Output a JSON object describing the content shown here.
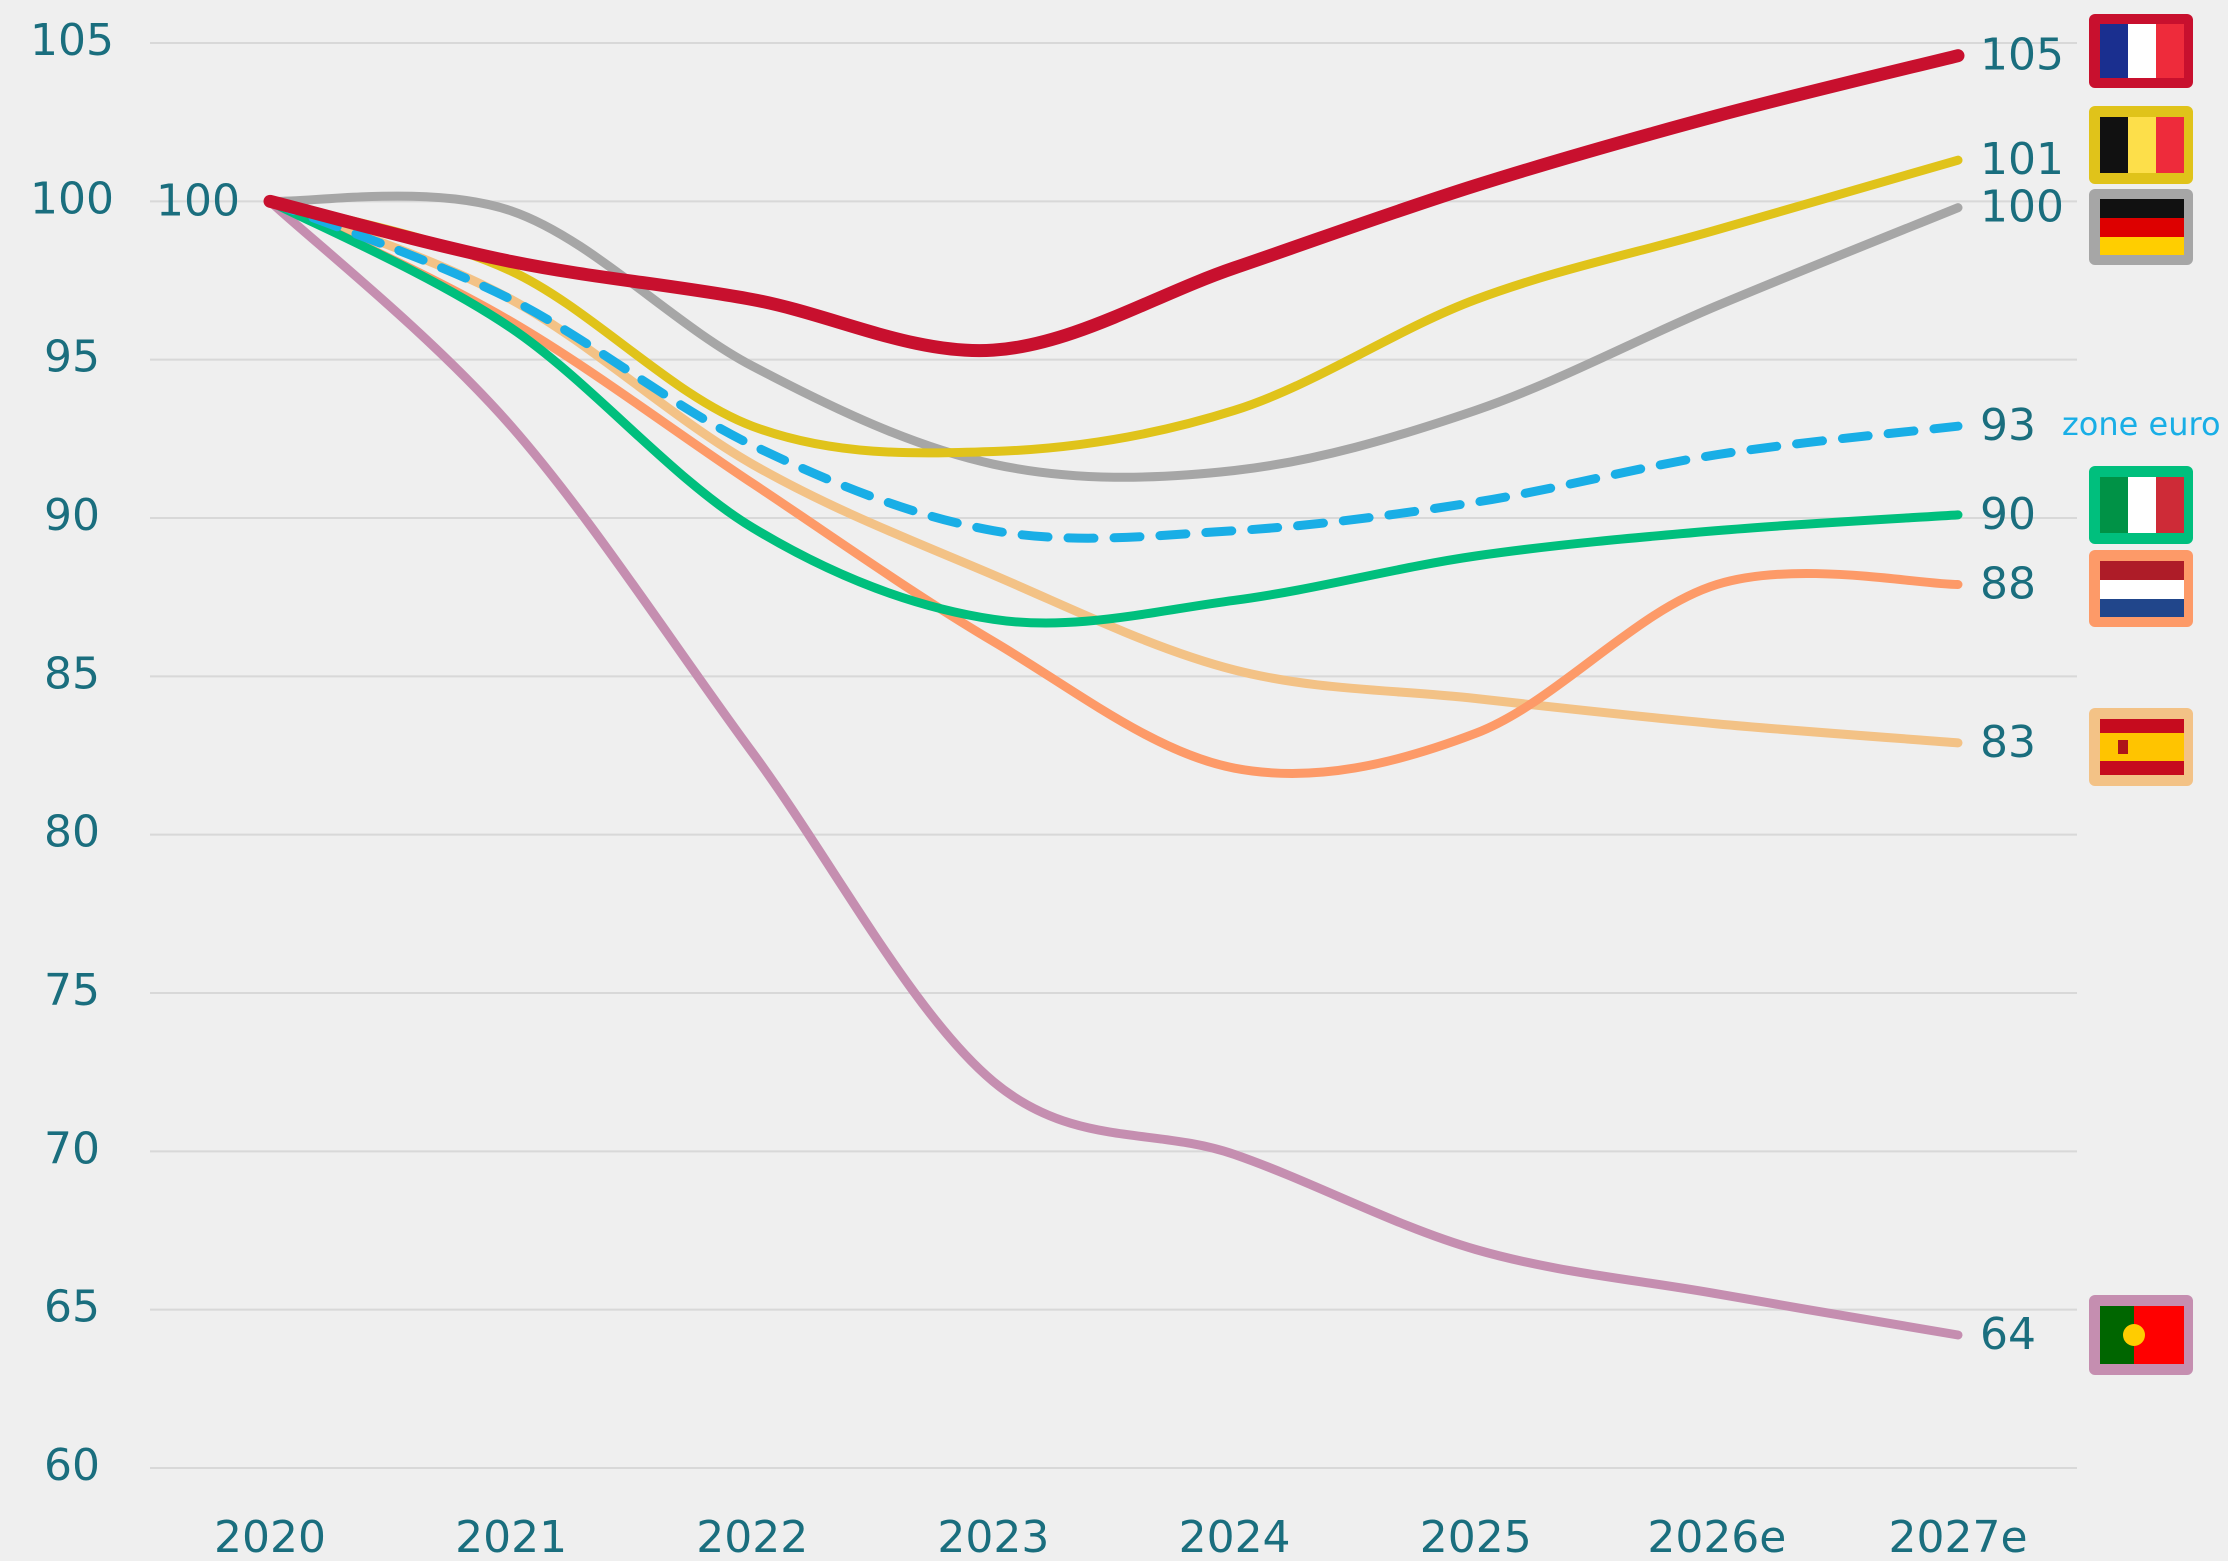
{
  "chart_data": {
    "type": "line",
    "categories": [
      "2020",
      "2021",
      "2022",
      "2023",
      "2024",
      "2025",
      "2026e",
      "2027e"
    ],
    "series": [
      {
        "color": "#c8102e",
        "values": [
          100,
          98.1,
          96.9,
          95.3,
          97.9,
          100.5,
          102.7,
          104.6
        ],
        "value_labels": [
          "100",
          null,
          null,
          null,
          null,
          null,
          null,
          "105"
        ]
      },
      {
        "color": "#e0c31a",
        "values": [
          100,
          97.8,
          92.9,
          92.1,
          93.4,
          96.9,
          99.1,
          101.3
        ],
        "value_labels": [
          null,
          null,
          null,
          null,
          null,
          null,
          null,
          "101"
        ]
      },
      {
        "color": "#a6a6a6",
        "values": [
          100,
          99.7,
          94.8,
          91.7,
          91.5,
          93.4,
          96.7,
          99.8
        ],
        "value_labels": [
          null,
          null,
          null,
          null,
          null,
          null,
          null,
          "100"
        ]
      },
      {
        "name": "zone euro",
        "color": "#19aee6",
        "dashed": true,
        "values": [
          100,
          96.9,
          92.3,
          89.6,
          89.6,
          90.5,
          92.0,
          92.9
        ],
        "value_labels": [
          null,
          null,
          null,
          null,
          null,
          null,
          null,
          "93"
        ]
      },
      {
        "color": "#00bf7d",
        "values": [
          100,
          96.0,
          89.7,
          86.8,
          87.4,
          88.8,
          89.6,
          90.1
        ],
        "value_labels": [
          null,
          null,
          null,
          null,
          null,
          null,
          null,
          "90"
        ]
      },
      {
        "color": "#fd9a68",
        "values": [
          100,
          96.2,
          91.1,
          86.1,
          82.1,
          83.2,
          87.9,
          87.9
        ],
        "value_labels": [
          null,
          null,
          null,
          null,
          null,
          null,
          null,
          "88"
        ]
      },
      {
        "color": "#f3c286",
        "values": [
          100,
          96.9,
          91.7,
          88.2,
          85.2,
          84.3,
          83.5,
          82.9
        ],
        "value_labels": [
          null,
          null,
          null,
          null,
          null,
          null,
          null,
          "83"
        ]
      },
      {
        "color": "#c58eb0",
        "values": [
          100,
          92.9,
          82.6,
          72.2,
          69.9,
          66.9,
          65.5,
          64.2
        ],
        "value_labels": [
          null,
          null,
          null,
          null,
          null,
          null,
          null,
          "64"
        ]
      }
    ],
    "ylim": [
      60,
      105
    ],
    "yticks": [
      60,
      65,
      70,
      75,
      80,
      85,
      90,
      95,
      100,
      105
    ],
    "grid": true
  }
}
